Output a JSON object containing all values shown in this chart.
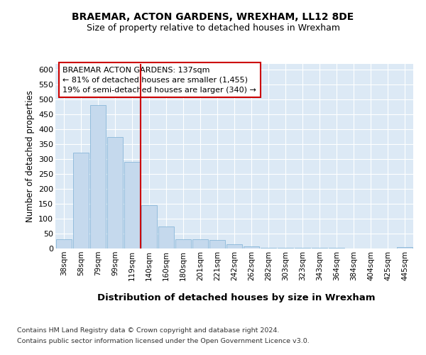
{
  "title1": "BRAEMAR, ACTON GARDENS, WREXHAM, LL12 8DE",
  "title2": "Size of property relative to detached houses in Wrexham",
  "xlabel": "Distribution of detached houses by size in Wrexham",
  "ylabel": "Number of detached properties",
  "categories": [
    "38sqm",
    "58sqm",
    "79sqm",
    "99sqm",
    "119sqm",
    "140sqm",
    "160sqm",
    "180sqm",
    "201sqm",
    "221sqm",
    "242sqm",
    "262sqm",
    "282sqm",
    "303sqm",
    "323sqm",
    "343sqm",
    "364sqm",
    "384sqm",
    "404sqm",
    "425sqm",
    "445sqm"
  ],
  "values": [
    32,
    322,
    482,
    374,
    291,
    145,
    75,
    32,
    30,
    29,
    15,
    7,
    3,
    2,
    2,
    2,
    2,
    1,
    1,
    1,
    4
  ],
  "bar_color": "#c5d9ed",
  "bar_edge_color": "#7aafd4",
  "vline_index": 5,
  "vline_color": "#cc0000",
  "annotation_text": "BRAEMAR ACTON GARDENS: 137sqm\n← 81% of detached houses are smaller (1,455)\n19% of semi-detached houses are larger (340) →",
  "annotation_box_color": "#ffffff",
  "annotation_box_edge": "#cc0000",
  "ylim": [
    0,
    620
  ],
  "yticks": [
    0,
    50,
    100,
    150,
    200,
    250,
    300,
    350,
    400,
    450,
    500,
    550,
    600
  ],
  "footnote1": "Contains HM Land Registry data © Crown copyright and database right 2024.",
  "footnote2": "Contains public sector information licensed under the Open Government Licence v3.0.",
  "bg_color": "#dce9f5",
  "fig_bg": "#ffffff"
}
